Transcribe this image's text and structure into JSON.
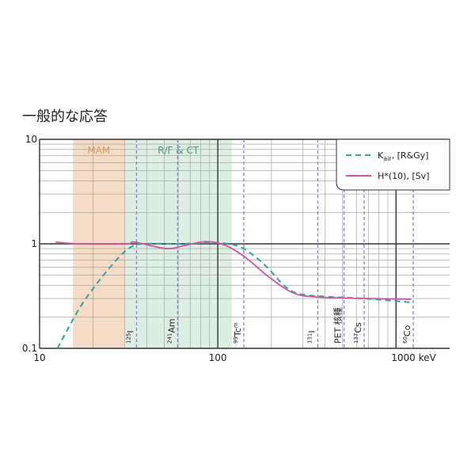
{
  "chart_data": {
    "type": "line",
    "title": "一般的な応答",
    "xlog": true,
    "ylog": true,
    "xlim": [
      10,
      2000
    ],
    "ylim": [
      0.1,
      10
    ],
    "xticks": [
      10,
      100,
      {
        "value": 1000,
        "label": "1000 keV"
      }
    ],
    "yticks": [
      0.1,
      1,
      10
    ],
    "x_minor_grid": [
      20,
      30,
      40,
      50,
      60,
      70,
      80,
      90,
      200,
      300,
      400,
      500,
      600,
      700,
      800,
      900
    ],
    "y_minor_grid": [
      0.2,
      0.3,
      0.4,
      0.5,
      0.6,
      0.7,
      0.8,
      0.9,
      2,
      3,
      4,
      5,
      6,
      7,
      8,
      9
    ],
    "grid": true,
    "regions": [
      {
        "label": "MAM",
        "range": [
          15.4,
          30
        ],
        "color": "#f6dcc6",
        "text_color": "#e59a5c"
      },
      {
        "label": "R/F & CT",
        "range": [
          30,
          120
        ],
        "color": "#dcefe2",
        "text_color": "#4f9a6a"
      }
    ],
    "markers": [
      {
        "x": 35,
        "mass": "125",
        "element": "I"
      },
      {
        "x": 59.5,
        "mass": "241",
        "element": "Am"
      },
      {
        "x": 140,
        "mass": "99",
        "element": "Tc",
        "suffix": "m"
      },
      {
        "x": 364,
        "mass": "131",
        "element": "I"
      },
      {
        "x": 511,
        "element": "PET 核種"
      },
      {
        "x": 662,
        "mass": "137",
        "element": "Cs"
      },
      {
        "x": 1250,
        "mass": "60",
        "element": "Co"
      }
    ],
    "marker_color": "#8a7fd0",
    "legend": "top-right",
    "series": [
      {
        "name": {
          "base": "K",
          "sub": "air",
          "rest": ", [R&Gy]"
        },
        "color": "#2aa6a6",
        "dash": true,
        "x": [
          12.6,
          16.7,
          21.5,
          27.8,
          32.5,
          37.8,
          60,
          100,
          130,
          158,
          194,
          239,
          292,
          440,
          660,
          1220
        ],
        "values": [
          0.1,
          0.24,
          0.44,
          0.74,
          0.93,
          1.0,
          1.0,
          1.02,
          0.95,
          0.78,
          0.57,
          0.39,
          0.33,
          0.31,
          0.3,
          0.275
        ]
      },
      {
        "name": {
          "base": "H*(10), [Sv]"
        },
        "color": "#d1559e",
        "dash": false,
        "x": [
          12.3,
          16.7,
          30.8,
          34,
          51.5,
          66,
          86,
          110,
          143,
          194,
          264,
          358,
          660,
          1220
        ],
        "values": [
          1.04,
          1.0,
          1.0,
          1.04,
          0.9,
          0.97,
          1.05,
          0.97,
          0.74,
          0.48,
          0.34,
          0.31,
          0.3,
          0.295
        ]
      }
    ]
  }
}
